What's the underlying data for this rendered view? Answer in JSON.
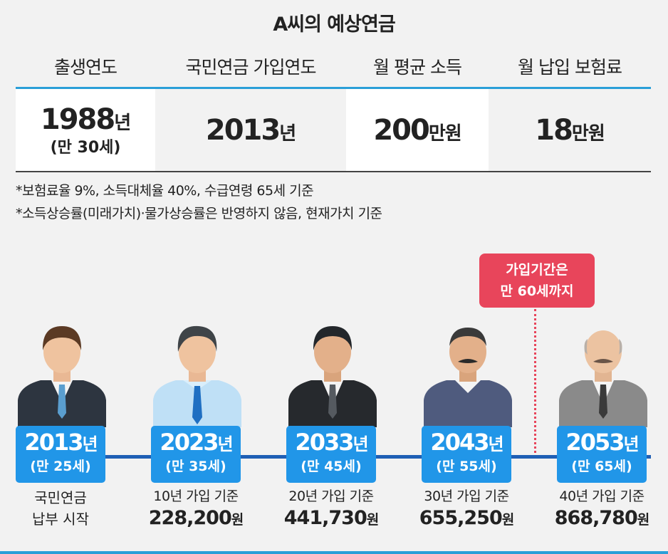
{
  "title": "A씨의 예상연금",
  "table": {
    "headers": [
      "출생연도",
      "국민연금 가입연도",
      "월 평균 소득",
      "월 납입 보험료"
    ],
    "birth_year": "1988",
    "birth_year_unit": "년",
    "birth_age": "(만 30세)",
    "join_year": "2013",
    "join_year_unit": "년",
    "income": "200",
    "income_unit": "만원",
    "premium": "18",
    "premium_unit": "만원"
  },
  "notes": [
    "*보험료율 9%, 소득대체율 40%, 수급연령 65세 기준",
    "*소득상승률(미래가치)·물가상승률은 반영하지 않음, 현재가치 기준"
  ],
  "callout": {
    "line1": "가입기간은",
    "line2": "만 60세까지"
  },
  "timeline": [
    {
      "year": "2013",
      "unit": "년",
      "age": "(만 25세)",
      "caption1": "국민연금",
      "caption2": "납부 시작"
    },
    {
      "year": "2023",
      "unit": "년",
      "age": "(만 35세)",
      "caption1": "10년 가입 기준",
      "amount": "228,200",
      "amount_unit": "원"
    },
    {
      "year": "2033",
      "unit": "년",
      "age": "(만 45세)",
      "caption1": "20년 가입 기준",
      "amount": "441,730",
      "amount_unit": "원"
    },
    {
      "year": "2043",
      "unit": "년",
      "age": "(만 55세)",
      "caption1": "30년 가입 기준",
      "amount": "655,250",
      "amount_unit": "원"
    },
    {
      "year": "2053",
      "unit": "년",
      "age": "(만 65세)",
      "caption1": "40년 가입 기준",
      "amount": "868,780",
      "amount_unit": "원"
    }
  ],
  "colors": {
    "accent_blue": "#2196e8",
    "line_blue": "#1f5fb5",
    "callout_red": "#e8455b"
  }
}
